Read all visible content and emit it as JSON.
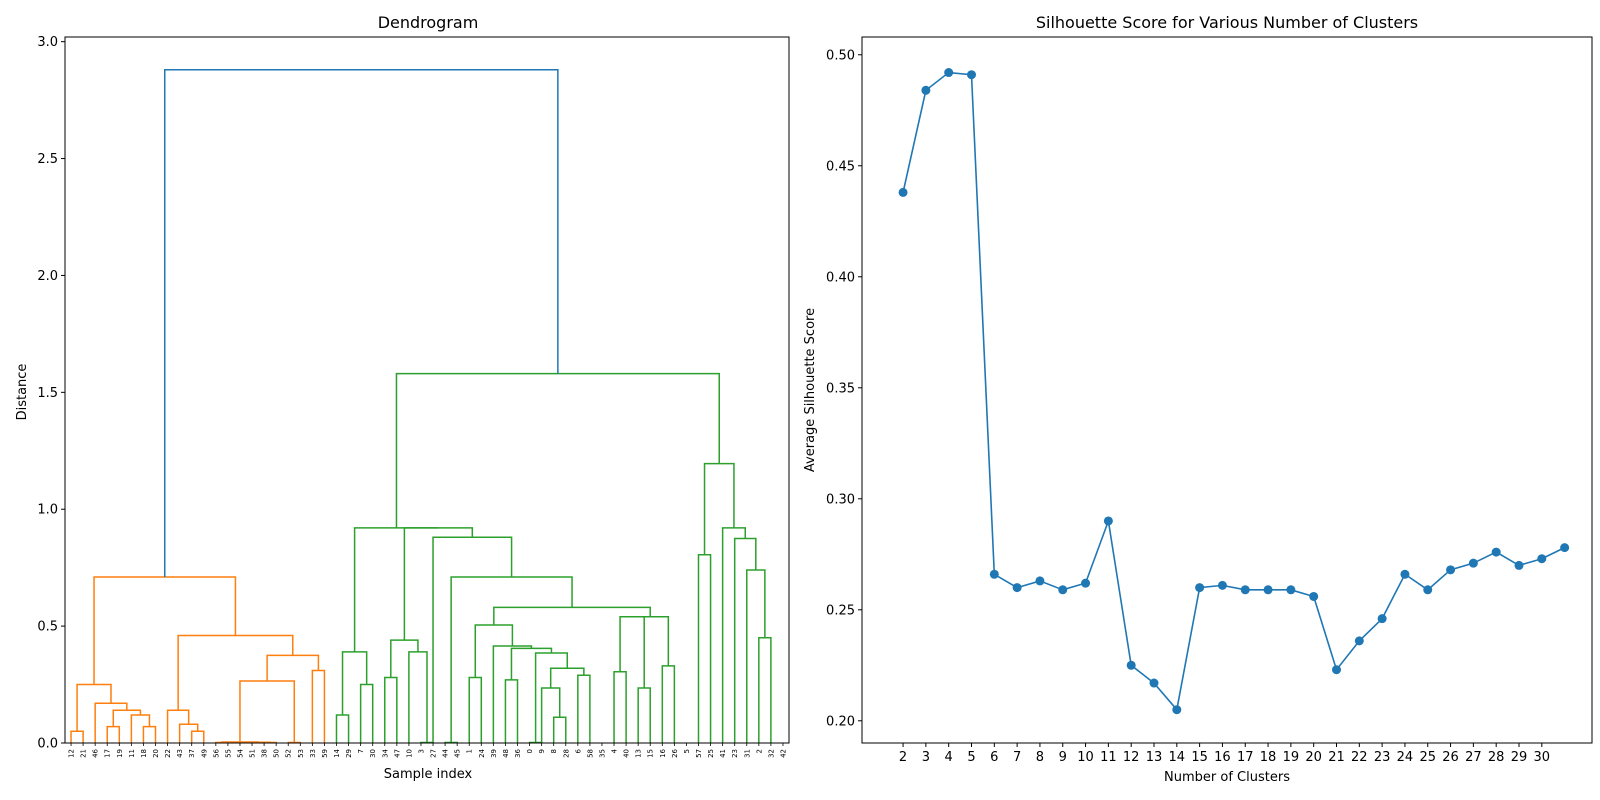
{
  "chart_data": [
    {
      "type": "dendrogram",
      "title": "Dendrogram",
      "xlabel": "Sample index",
      "ylabel": "Distance",
      "ylim": [
        0,
        3.02
      ],
      "yticks": [
        "0.0",
        "0.5",
        "1.0",
        "1.5",
        "2.0",
        "2.5",
        "3.0"
      ],
      "colors": {
        "above_threshold": "#1f77b4",
        "cluster_1": "#ff7f0e",
        "cluster_2": "#2ca02c"
      },
      "leaves": [
        "12",
        "21",
        "46",
        "17",
        "19",
        "11",
        "18",
        "20",
        "22",
        "43",
        "37",
        "49",
        "56",
        "55",
        "54",
        "51",
        "38",
        "50",
        "52",
        "53",
        "33",
        "59",
        "14",
        "29",
        "7",
        "30",
        "34",
        "47",
        "10",
        "3",
        "27",
        "44",
        "45",
        "1",
        "24",
        "39",
        "48",
        "36",
        "0",
        "9",
        "8",
        "28",
        "6",
        "58",
        "35",
        "4",
        "40",
        "13",
        "15",
        "16",
        "26",
        "5",
        "57",
        "25",
        "41",
        "23",
        "31",
        "2",
        "32",
        "42"
      ],
      "links": [
        {
          "c": "#ff7f0e",
          "x": [
            0,
            0,
            1,
            1
          ],
          "y": [
            0,
            0.05,
            0.05,
            0
          ]
        },
        {
          "c": "#ff7f0e",
          "x": [
            3,
            3,
            4,
            4
          ],
          "y": [
            0,
            0.07,
            0.07,
            0
          ]
        },
        {
          "c": "#ff7f0e",
          "x": [
            6,
            6,
            7,
            7
          ],
          "y": [
            0,
            0.07,
            0.07,
            0
          ]
        },
        {
          "c": "#ff7f0e",
          "x": [
            5,
            5,
            6.5,
            6.5
          ],
          "y": [
            0,
            0.12,
            0.12,
            0.07
          ]
        },
        {
          "c": "#ff7f0e",
          "x": [
            3.5,
            3.5,
            5.75,
            5.75
          ],
          "y": [
            0.07,
            0.14,
            0.14,
            0.12
          ]
        },
        {
          "c": "#ff7f0e",
          "x": [
            2,
            2,
            4.625,
            4.625
          ],
          "y": [
            0,
            0.17,
            0.17,
            0.14
          ]
        },
        {
          "c": "#ff7f0e",
          "x": [
            0.5,
            0.5,
            3.3125,
            3.3125
          ],
          "y": [
            0.05,
            0.25,
            0.25,
            0.17
          ]
        },
        {
          "c": "#ff7f0e",
          "x": [
            10,
            10,
            11,
            11
          ],
          "y": [
            0,
            0.05,
            0.05,
            0
          ]
        },
        {
          "c": "#ff7f0e",
          "x": [
            9,
            9,
            10.5,
            10.5
          ],
          "y": [
            0,
            0.08,
            0.08,
            0.05
          ]
        },
        {
          "c": "#ff7f0e",
          "x": [
            8,
            8,
            9.75,
            9.75
          ],
          "y": [
            0,
            0.14,
            0.14,
            0.08
          ]
        },
        {
          "c": "#ff7f0e",
          "x": [
            12,
            12,
            13,
            13
          ],
          "y": [
            0,
            0.002,
            0.002,
            0
          ]
        },
        {
          "c": "#ff7f0e",
          "x": [
            14,
            14,
            15,
            15
          ],
          "y": [
            0,
            0.002,
            0.002,
            0
          ]
        },
        {
          "c": "#ff7f0e",
          "x": [
            16,
            16,
            17,
            17
          ],
          "y": [
            0,
            0.002,
            0.002,
            0
          ]
        },
        {
          "c": "#ff7f0e",
          "x": [
            14.5,
            14.5,
            16.5,
            16.5
          ],
          "y": [
            0.002,
            0.003,
            0.003,
            0.002
          ]
        },
        {
          "c": "#ff7f0e",
          "x": [
            12.5,
            12.5,
            15.5,
            15.5
          ],
          "y": [
            0.002,
            0.004,
            0.004,
            0.003
          ]
        },
        {
          "c": "#ff7f0e",
          "x": [
            18,
            18,
            19,
            19
          ],
          "y": [
            0,
            0.002,
            0.002,
            0
          ]
        },
        {
          "c": "#ff7f0e",
          "x": [
            14,
            14,
            18.5,
            18.5
          ],
          "y": [
            0.004,
            0.265,
            0.265,
            0.002
          ]
        },
        {
          "c": "#ff7f0e",
          "x": [
            20,
            20,
            21,
            21
          ],
          "y": [
            0,
            0.31,
            0.31,
            0
          ]
        },
        {
          "c": "#ff7f0e",
          "x": [
            16.25,
            16.25,
            20.5,
            20.5
          ],
          "y": [
            0.265,
            0.375,
            0.375,
            0.31
          ]
        },
        {
          "c": "#ff7f0e",
          "x": [
            8.875,
            8.875,
            18.375,
            18.375
          ],
          "y": [
            0.14,
            0.46,
            0.46,
            0.375
          ]
        },
        {
          "c": "#ff7f0e",
          "x": [
            1.90625,
            1.90625,
            13.625,
            13.625
          ],
          "y": [
            0.25,
            0.71,
            0.71,
            0.46
          ]
        },
        {
          "c": "#2ca02c",
          "x": [
            22,
            22,
            23,
            23
          ],
          "y": [
            0,
            0.12,
            0.12,
            0
          ]
        },
        {
          "c": "#2ca02c",
          "x": [
            24,
            24,
            25,
            25
          ],
          "y": [
            0,
            0.25,
            0.25,
            0
          ]
        },
        {
          "c": "#2ca02c",
          "x": [
            22.5,
            22.5,
            24.5,
            24.5
          ],
          "y": [
            0.12,
            0.39,
            0.39,
            0.25
          ]
        },
        {
          "c": "#2ca02c",
          "x": [
            26,
            26,
            27,
            27
          ],
          "y": [
            0,
            0.28,
            0.28,
            0
          ]
        },
        {
          "c": "#2ca02c",
          "x": [
            29,
            29,
            30,
            30
          ],
          "y": [
            0,
            0.002,
            0.002,
            0
          ]
        },
        {
          "c": "#2ca02c",
          "x": [
            28,
            28,
            29.5,
            29.5
          ],
          "y": [
            0,
            0.39,
            0.39,
            0.002
          ]
        },
        {
          "c": "#2ca02c",
          "x": [
            26.5,
            26.5,
            28.75,
            28.75
          ],
          "y": [
            0.28,
            0.44,
            0.44,
            0.39
          ]
        },
        {
          "c": "#2ca02c",
          "x": [
            31,
            31,
            32,
            32
          ],
          "y": [
            0,
            0.002,
            0.002,
            0
          ]
        },
        {
          "c": "#2ca02c",
          "x": [
            33,
            33,
            34,
            34
          ],
          "y": [
            0,
            0.28,
            0.28,
            0
          ]
        },
        {
          "c": "#2ca02c",
          "x": [
            36,
            36,
            37,
            37
          ],
          "y": [
            0,
            0.27,
            0.27,
            0
          ]
        },
        {
          "c": "#2ca02c",
          "x": [
            38,
            38,
            39,
            39
          ],
          "y": [
            0,
            0.002,
            0.002,
            0
          ]
        },
        {
          "c": "#2ca02c",
          "x": [
            40,
            40,
            41,
            41
          ],
          "y": [
            0,
            0.11,
            0.11,
            0
          ]
        },
        {
          "c": "#2ca02c",
          "x": [
            39,
            39,
            40.5,
            40.5
          ],
          "y": [
            0,
            0.235,
            0.235,
            0.11
          ]
        },
        {
          "c": "#2ca02c",
          "x": [
            42,
            42,
            43,
            43
          ],
          "y": [
            0,
            0.29,
            0.29,
            0
          ]
        },
        {
          "c": "#2ca02c",
          "x": [
            39.75,
            39.75,
            42.5,
            42.5
          ],
          "y": [
            0.235,
            0.32,
            0.32,
            0.29
          ]
        },
        {
          "c": "#2ca02c",
          "x": [
            38.5,
            38.5,
            41.125,
            41.125
          ],
          "y": [
            0.002,
            0.385,
            0.385,
            0.32
          ]
        },
        {
          "c": "#2ca02c",
          "x": [
            36.5,
            36.5,
            39.8125,
            39.8125
          ],
          "y": [
            0.27,
            0.405,
            0.405,
            0.385
          ]
        },
        {
          "c": "#2ca02c",
          "x": [
            35,
            35,
            38.15625,
            38.15625
          ],
          "y": [
            0,
            0.415,
            0.415,
            0.405
          ]
        },
        {
          "c": "#2ca02c",
          "x": [
            33.5,
            33.5,
            36.578125,
            36.578125
          ],
          "y": [
            0.28,
            0.505,
            0.505,
            0.415
          ]
        },
        {
          "c": "#2ca02c",
          "x": [
            45,
            45,
            46,
            46
          ],
          "y": [
            0,
            0.305,
            0.305,
            0
          ]
        },
        {
          "c": "#2ca02c",
          "x": [
            47,
            47,
            48,
            48
          ],
          "y": [
            0,
            0.235,
            0.235,
            0
          ]
        },
        {
          "c": "#2ca02c",
          "x": [
            45.5,
            45.5,
            47.5,
            47.5
          ],
          "y": [
            0.305,
            0.54,
            0.54,
            0.235
          ]
        },
        {
          "c": "#2ca02c",
          "x": [
            49,
            49,
            50,
            50
          ],
          "y": [
            0,
            0.33,
            0.33,
            0
          ]
        },
        {
          "c": "#2ca02c",
          "x": [
            46.5,
            46.5,
            49.5,
            49.5
          ],
          "y": [
            0.54,
            0.54,
            0.54,
            0.33
          ]
        },
        {
          "c": "#2ca02c",
          "x": [
            35.0390625,
            35.0390625,
            48,
            48
          ],
          "y": [
            0.505,
            0.58,
            0.58,
            0.54
          ]
        },
        {
          "c": "#2ca02c",
          "x": [
            31.5,
            31.5,
            41.51953125,
            41.51953125
          ],
          "y": [
            0.002,
            0.71,
            0.71,
            0.58
          ]
        },
        {
          "c": "#2ca02c",
          "x": [
            30,
            30,
            36.509765625,
            36.509765625
          ],
          "y": [
            0,
            0.88,
            0.88,
            0.71
          ]
        },
        {
          "c": "#2ca02c",
          "x": [
            27.625,
            27.625,
            33.2548828125,
            33.2548828125
          ],
          "y": [
            0.44,
            0.92,
            0.92,
            0.88
          ]
        },
        {
          "c": "#2ca02c",
          "x": [
            23.5,
            23.5,
            30.43994140625,
            30.43994140625
          ],
          "y": [
            0.39,
            0.92,
            0.92,
            0.92
          ]
        },
        {
          "c": "#2ca02c",
          "x": [
            52,
            52,
            53,
            53
          ],
          "y": [
            0,
            0.805,
            0.805,
            0
          ]
        },
        {
          "c": "#2ca02c",
          "x": [
            57,
            57,
            58,
            58
          ],
          "y": [
            0,
            0.45,
            0.45,
            0
          ]
        },
        {
          "c": "#2ca02c",
          "x": [
            56,
            56,
            57.5,
            57.5
          ],
          "y": [
            0,
            0.74,
            0.74,
            0.45
          ]
        },
        {
          "c": "#2ca02c",
          "x": [
            55,
            55,
            56.75,
            56.75
          ],
          "y": [
            0,
            0.875,
            0.875,
            0.74
          ]
        },
        {
          "c": "#2ca02c",
          "x": [
            54,
            54,
            55.875,
            55.875
          ],
          "y": [
            0,
            0.92,
            0.92,
            0.875
          ]
        },
        {
          "c": "#2ca02c",
          "x": [
            52.5,
            52.5,
            54.9375,
            54.9375
          ],
          "y": [
            0.805,
            1.195,
            1.195,
            0.92
          ]
        },
        {
          "c": "#2ca02c",
          "x": [
            26.969970703125,
            26.969970703125,
            53.71875,
            53.71875
          ],
          "y": [
            0.92,
            1.58,
            1.58,
            1.195
          ]
        },
        {
          "c": "#1f77b4",
          "x": [
            7.765625,
            7.765625,
            40.3443603515625,
            40.3443603515625
          ],
          "y": [
            0.71,
            2.88,
            2.88,
            1.58
          ]
        }
      ]
    },
    {
      "type": "line",
      "title": "Silhouette Score for Various Number of Clusters",
      "xlabel": "Number of Clusters",
      "ylabel": "Average Silhouette Score",
      "ylim": [
        0.19,
        0.508
      ],
      "xlim": [
        0.2,
        32.2
      ],
      "yticks": [
        "0.20",
        "0.25",
        "0.30",
        "0.35",
        "0.40",
        "0.45",
        "0.50"
      ],
      "xticks": [
        "2",
        "3",
        "4",
        "5",
        "6",
        "7",
        "8",
        "9",
        "10",
        "11",
        "12",
        "13",
        "14",
        "15",
        "16",
        "17",
        "18",
        "19",
        "20",
        "21",
        "22",
        "23",
        "24",
        "25",
        "26",
        "27",
        "28",
        "29",
        "30"
      ],
      "color": "#1f77b4",
      "x": [
        2,
        3,
        4,
        5,
        6,
        7,
        8,
        9,
        10,
        11,
        12,
        13,
        14,
        15,
        16,
        17,
        18,
        19,
        20,
        21,
        22,
        23,
        24,
        25,
        26,
        27,
        28,
        29,
        30,
        31
      ],
      "y": [
        0.438,
        0.484,
        0.492,
        0.491,
        0.266,
        0.26,
        0.263,
        0.259,
        0.262,
        0.29,
        0.225,
        0.217,
        0.205,
        0.26,
        0.261,
        0.259,
        0.259,
        0.259,
        0.256,
        0.223,
        0.236,
        0.246,
        0.266,
        0.259,
        0.268,
        0.271,
        0.276,
        0.27,
        0.273,
        0.278
      ]
    }
  ]
}
